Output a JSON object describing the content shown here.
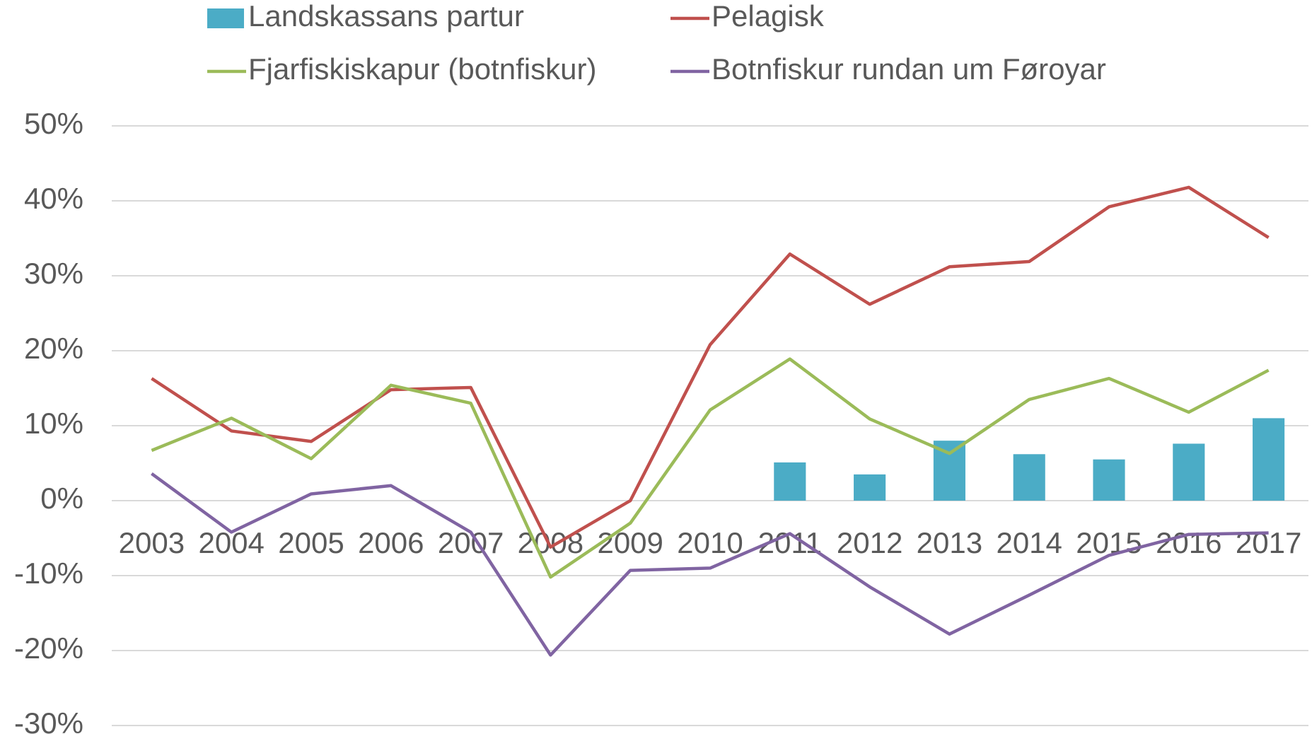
{
  "chart_data": {
    "type": "combo",
    "categories": [
      "2003",
      "2004",
      "2005",
      "2006",
      "2007",
      "2008",
      "2009",
      "2010",
      "2011",
      "2012",
      "2013",
      "2014",
      "2015",
      "2016",
      "2017"
    ],
    "series": [
      {
        "name": "Landskassans partur",
        "type": "bar",
        "color": "#4bacc6",
        "values": [
          null,
          null,
          null,
          null,
          null,
          null,
          null,
          null,
          5.1,
          3.5,
          8.0,
          6.2,
          5.5,
          7.6,
          11.0
        ]
      },
      {
        "name": "Pelagisk",
        "type": "line",
        "color": "#c0504d",
        "values": [
          16.3,
          9.3,
          7.9,
          14.8,
          15.1,
          -6.2,
          0,
          20.8,
          32.9,
          26.2,
          31.2,
          31.9,
          39.2,
          41.8,
          35.1
        ]
      },
      {
        "name": "Fjarfiskiskapur (botnfiskur)",
        "type": "line",
        "color": "#9bbb59",
        "values": [
          6.7,
          11.0,
          5.6,
          15.4,
          13.0,
          -10.2,
          -3.0,
          12.1,
          18.9,
          10.9,
          6.3,
          13.5,
          16.3,
          11.8,
          17.4
        ]
      },
      {
        "name": "Botnfiskur rundan um Føroyar",
        "type": "line",
        "color": "#8064a2",
        "values": [
          3.6,
          -4.2,
          0.9,
          2.0,
          -4.2,
          -20.6,
          -9.3,
          -9.0,
          -4.4,
          -11.5,
          -17.8,
          -12.6,
          -7.3,
          -4.5,
          -4.3
        ]
      }
    ],
    "ylim": [
      -30,
      50
    ],
    "yticks": [
      {
        "value": -30,
        "label": "-30%"
      },
      {
        "value": -20,
        "label": "-20%"
      },
      {
        "value": -10,
        "label": "-10%"
      },
      {
        "value": 0,
        "label": "0%"
      },
      {
        "value": 10,
        "label": "10%"
      },
      {
        "value": 20,
        "label": "20%"
      },
      {
        "value": 30,
        "label": "30%"
      },
      {
        "value": 40,
        "label": "40%"
      },
      {
        "value": 50,
        "label": "50%"
      }
    ],
    "grid": true,
    "legend": "top"
  }
}
